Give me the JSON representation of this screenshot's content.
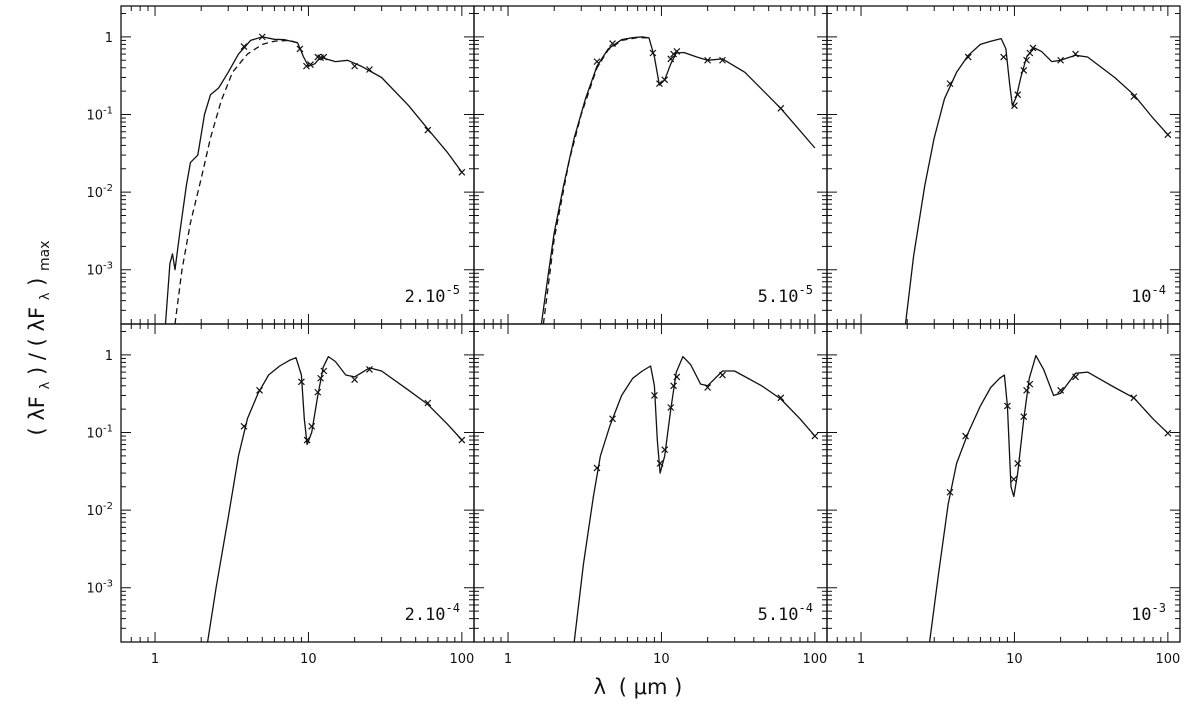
{
  "chart_data": [
    {
      "type": "line",
      "panel_label": {
        "mantissa": "2.10",
        "exp": "-5"
      },
      "xscale": "log",
      "yscale": "log",
      "xlim": [
        0.6,
        120
      ],
      "ylim": [
        0.0002,
        2.5
      ],
      "series": [
        {
          "style": "solid",
          "points": [
            [
              1.17,
              0.0002
            ],
            [
              1.25,
              0.0012
            ],
            [
              1.3,
              0.0016
            ],
            [
              1.35,
              0.001
            ],
            [
              1.45,
              0.003
            ],
            [
              1.6,
              0.012
            ],
            [
              1.7,
              0.024
            ],
            [
              1.9,
              0.03
            ],
            [
              2.1,
              0.1
            ],
            [
              2.3,
              0.18
            ],
            [
              2.6,
              0.22
            ],
            [
              3.0,
              0.35
            ],
            [
              3.5,
              0.6
            ],
            [
              4.2,
              0.9
            ],
            [
              5.0,
              1.0
            ],
            [
              6.0,
              0.93
            ],
            [
              7.0,
              0.92
            ],
            [
              8.5,
              0.84
            ],
            [
              9.3,
              0.55
            ],
            [
              10.0,
              0.42
            ],
            [
              11.0,
              0.45
            ],
            [
              12.0,
              0.55
            ],
            [
              13.0,
              0.52
            ],
            [
              15.0,
              0.48
            ],
            [
              18.0,
              0.5
            ],
            [
              22.0,
              0.42
            ],
            [
              30.0,
              0.3
            ],
            [
              45.0,
              0.13
            ],
            [
              60.0,
              0.065
            ],
            [
              80.0,
              0.033
            ],
            [
              100.0,
              0.018
            ]
          ]
        },
        {
          "style": "dashed",
          "points": [
            [
              1.35,
              0.0002
            ],
            [
              1.5,
              0.001
            ],
            [
              1.7,
              0.004
            ],
            [
              2.0,
              0.015
            ],
            [
              2.3,
              0.05
            ],
            [
              2.7,
              0.15
            ],
            [
              3.2,
              0.35
            ],
            [
              4.0,
              0.6
            ],
            [
              5.0,
              0.8
            ],
            [
              6.0,
              0.88
            ],
            [
              7.5,
              0.9
            ],
            [
              8.5,
              0.84
            ]
          ]
        }
      ],
      "markers": [
        [
          3.8,
          0.75
        ],
        [
          5.0,
          1.0
        ],
        [
          8.8,
          0.7
        ],
        [
          9.7,
          0.42
        ],
        [
          10.3,
          0.44
        ],
        [
          11.5,
          0.55
        ],
        [
          12.0,
          0.54
        ],
        [
          12.6,
          0.55
        ],
        [
          20.0,
          0.42
        ],
        [
          25.0,
          0.38
        ],
        [
          60.0,
          0.063
        ],
        [
          100.0,
          0.018
        ]
      ]
    },
    {
      "type": "line",
      "panel_label": {
        "mantissa": "5.10",
        "exp": "-5"
      },
      "xscale": "log",
      "yscale": "log",
      "xlim": [
        0.6,
        120
      ],
      "ylim": [
        0.0002,
        2.5
      ],
      "series": [
        {
          "style": "solid",
          "points": [
            [
              1.65,
              0.0002
            ],
            [
              1.8,
              0.0007
            ],
            [
              2.0,
              0.003
            ],
            [
              2.3,
              0.012
            ],
            [
              2.7,
              0.05
            ],
            [
              3.2,
              0.16
            ],
            [
              3.8,
              0.42
            ],
            [
              4.5,
              0.7
            ],
            [
              5.5,
              0.92
            ],
            [
              6.5,
              0.98
            ],
            [
              7.5,
              1.0
            ],
            [
              8.3,
              0.97
            ],
            [
              9.0,
              0.55
            ],
            [
              9.7,
              0.24
            ],
            [
              10.5,
              0.28
            ],
            [
              11.5,
              0.45
            ],
            [
              12.5,
              0.62
            ],
            [
              14.0,
              0.63
            ],
            [
              17.0,
              0.55
            ],
            [
              20.0,
              0.5
            ],
            [
              25.0,
              0.52
            ],
            [
              35.0,
              0.35
            ],
            [
              60.0,
              0.12
            ],
            [
              100.0,
              0.037
            ]
          ]
        },
        {
          "style": "dashed",
          "points": [
            [
              1.7,
              0.0002
            ],
            [
              2.0,
              0.0025
            ],
            [
              2.5,
              0.025
            ],
            [
              3.0,
              0.1
            ],
            [
              3.8,
              0.4
            ],
            [
              4.5,
              0.68
            ],
            [
              5.5,
              0.9
            ],
            [
              7.0,
              0.98
            ],
            [
              8.3,
              0.97
            ]
          ]
        }
      ],
      "markers": [
        [
          3.8,
          0.48
        ],
        [
          4.8,
          0.82
        ],
        [
          8.8,
          0.62
        ],
        [
          9.7,
          0.25
        ],
        [
          10.5,
          0.28
        ],
        [
          11.5,
          0.52
        ],
        [
          12.0,
          0.6
        ],
        [
          12.6,
          0.65
        ],
        [
          20.0,
          0.5
        ],
        [
          25.0,
          0.5
        ],
        [
          60.0,
          0.12
        ]
      ]
    },
    {
      "type": "line",
      "panel_label": {
        "mantissa": "10",
        "exp": "-4"
      },
      "xscale": "log",
      "yscale": "log",
      "xlim": [
        0.6,
        120
      ],
      "ylim": [
        0.0002,
        2.5
      ],
      "series": [
        {
          "style": "solid",
          "points": [
            [
              1.95,
              0.0002
            ],
            [
              2.2,
              0.0015
            ],
            [
              2.6,
              0.012
            ],
            [
              3.0,
              0.05
            ],
            [
              3.5,
              0.16
            ],
            [
              4.2,
              0.35
            ],
            [
              5.0,
              0.58
            ],
            [
              6.0,
              0.8
            ],
            [
              7.0,
              0.88
            ],
            [
              8.2,
              0.95
            ],
            [
              8.8,
              0.7
            ],
            [
              9.3,
              0.25
            ],
            [
              9.7,
              0.13
            ],
            [
              10.3,
              0.17
            ],
            [
              11.0,
              0.3
            ],
            [
              12.0,
              0.55
            ],
            [
              13.5,
              0.72
            ],
            [
              15.0,
              0.65
            ],
            [
              17.5,
              0.48
            ],
            [
              20.0,
              0.5
            ],
            [
              25.0,
              0.58
            ],
            [
              30.0,
              0.55
            ],
            [
              45.0,
              0.3
            ],
            [
              60.0,
              0.18
            ],
            [
              80.0,
              0.09
            ],
            [
              100.0,
              0.055
            ]
          ]
        }
      ],
      "markers": [
        [
          3.8,
          0.25
        ],
        [
          5.0,
          0.55
        ],
        [
          8.5,
          0.55
        ],
        [
          10.0,
          0.13
        ],
        [
          10.5,
          0.18
        ],
        [
          11.5,
          0.37
        ],
        [
          12.0,
          0.5
        ],
        [
          12.6,
          0.62
        ],
        [
          13.2,
          0.72
        ],
        [
          20.0,
          0.5
        ],
        [
          25.0,
          0.6
        ],
        [
          60.0,
          0.17
        ],
        [
          100.0,
          0.055
        ]
      ]
    },
    {
      "type": "line",
      "panel_label": {
        "mantissa": "2.10",
        "exp": "-4"
      },
      "xscale": "log",
      "yscale": "log",
      "xlim": [
        0.6,
        120
      ],
      "ylim": [
        0.0002,
        2.5
      ],
      "series": [
        {
          "style": "solid",
          "points": [
            [
              2.2,
              0.0002
            ],
            [
              2.5,
              0.001
            ],
            [
              3.0,
              0.008
            ],
            [
              3.5,
              0.05
            ],
            [
              4.0,
              0.15
            ],
            [
              4.7,
              0.32
            ],
            [
              5.5,
              0.55
            ],
            [
              6.5,
              0.72
            ],
            [
              7.5,
              0.85
            ],
            [
              8.3,
              0.92
            ],
            [
              9.0,
              0.55
            ],
            [
              9.4,
              0.15
            ],
            [
              9.8,
              0.07
            ],
            [
              10.5,
              0.1
            ],
            [
              11.5,
              0.3
            ],
            [
              12.5,
              0.7
            ],
            [
              13.5,
              0.95
            ],
            [
              15.0,
              0.82
            ],
            [
              17.5,
              0.55
            ],
            [
              20.0,
              0.52
            ],
            [
              25.0,
              0.68
            ],
            [
              30.0,
              0.62
            ],
            [
              45.0,
              0.35
            ],
            [
              60.0,
              0.23
            ],
            [
              80.0,
              0.13
            ],
            [
              100.0,
              0.08
            ]
          ]
        }
      ],
      "markers": [
        [
          3.8,
          0.12
        ],
        [
          4.8,
          0.35
        ],
        [
          9.0,
          0.45
        ],
        [
          9.8,
          0.08
        ],
        [
          10.5,
          0.12
        ],
        [
          11.5,
          0.33
        ],
        [
          12.0,
          0.5
        ],
        [
          12.6,
          0.62
        ],
        [
          20.0,
          0.48
        ],
        [
          25.0,
          0.65
        ],
        [
          60.0,
          0.24
        ],
        [
          100.0,
          0.08
        ]
      ]
    },
    {
      "type": "line",
      "panel_label": {
        "mantissa": "5.10",
        "exp": "-4"
      },
      "xscale": "log",
      "yscale": "log",
      "xlim": [
        0.6,
        120
      ],
      "ylim": [
        0.0002,
        2.5
      ],
      "series": [
        {
          "style": "solid",
          "points": [
            [
              2.7,
              0.0002
            ],
            [
              3.1,
              0.002
            ],
            [
              3.6,
              0.015
            ],
            [
              4.0,
              0.05
            ],
            [
              4.6,
              0.12
            ],
            [
              5.5,
              0.3
            ],
            [
              6.5,
              0.5
            ],
            [
              7.5,
              0.62
            ],
            [
              8.5,
              0.72
            ],
            [
              9.0,
              0.4
            ],
            [
              9.4,
              0.08
            ],
            [
              9.8,
              0.03
            ],
            [
              10.5,
              0.05
            ],
            [
              11.5,
              0.2
            ],
            [
              12.5,
              0.6
            ],
            [
              13.8,
              0.95
            ],
            [
              15.5,
              0.75
            ],
            [
              18.0,
              0.42
            ],
            [
              20.0,
              0.4
            ],
            [
              25.0,
              0.62
            ],
            [
              30.0,
              0.62
            ],
            [
              45.0,
              0.4
            ],
            [
              60.0,
              0.27
            ],
            [
              80.0,
              0.15
            ],
            [
              100.0,
              0.09
            ]
          ]
        }
      ],
      "markers": [
        [
          3.8,
          0.035
        ],
        [
          4.8,
          0.15
        ],
        [
          9.0,
          0.3
        ],
        [
          9.8,
          0.04
        ],
        [
          10.5,
          0.06
        ],
        [
          11.5,
          0.21
        ],
        [
          12.0,
          0.4
        ],
        [
          12.6,
          0.52
        ],
        [
          20.0,
          0.38
        ],
        [
          25.0,
          0.55
        ],
        [
          60.0,
          0.28
        ],
        [
          100.0,
          0.09
        ]
      ]
    },
    {
      "type": "line",
      "panel_label": {
        "mantissa": "10",
        "exp": "-3"
      },
      "xscale": "log",
      "yscale": "log",
      "xlim": [
        0.6,
        120
      ],
      "ylim": [
        0.0002,
        2.5
      ],
      "series": [
        {
          "style": "solid",
          "points": [
            [
              2.8,
              0.0002
            ],
            [
              3.2,
              0.0015
            ],
            [
              3.7,
              0.012
            ],
            [
              4.2,
              0.04
            ],
            [
              5.0,
              0.1
            ],
            [
              6.0,
              0.22
            ],
            [
              7.0,
              0.38
            ],
            [
              8.0,
              0.5
            ],
            [
              8.6,
              0.55
            ],
            [
              9.0,
              0.22
            ],
            [
              9.5,
              0.02
            ],
            [
              9.9,
              0.015
            ],
            [
              10.5,
              0.03
            ],
            [
              11.5,
              0.15
            ],
            [
              12.5,
              0.5
            ],
            [
              13.8,
              0.98
            ],
            [
              15.5,
              0.65
            ],
            [
              18.0,
              0.3
            ],
            [
              20.0,
              0.32
            ],
            [
              25.0,
              0.58
            ],
            [
              30.0,
              0.6
            ],
            [
              45.0,
              0.38
            ],
            [
              60.0,
              0.28
            ],
            [
              80.0,
              0.15
            ],
            [
              100.0,
              0.098
            ]
          ]
        }
      ],
      "markers": [
        [
          3.8,
          0.017
        ],
        [
          4.8,
          0.09
        ],
        [
          9.0,
          0.22
        ],
        [
          9.9,
          0.025
        ],
        [
          10.5,
          0.04
        ],
        [
          11.5,
          0.16
        ],
        [
          12.0,
          0.35
        ],
        [
          12.6,
          0.42
        ],
        [
          20.0,
          0.35
        ],
        [
          25.0,
          0.52
        ],
        [
          60.0,
          0.28
        ],
        [
          100.0,
          0.098
        ]
      ]
    }
  ],
  "axes": {
    "x_tick_labels": [
      "1",
      "10",
      "100"
    ],
    "y_tick_labels": [
      {
        "mantissa": "1",
        "exp": ""
      },
      {
        "mantissa": "10",
        "exp": "-1"
      },
      {
        "mantissa": "10",
        "exp": "-2"
      },
      {
        "mantissa": "10",
        "exp": "-3"
      }
    ],
    "xlabel_parts": {
      "lambda": "λ",
      "open": "(",
      "unit": "μm",
      "close": ")"
    },
    "ylabel_parts": {
      "lp1": "(",
      "num": "λF",
      "sub1": "λ",
      "rp1": ")",
      "slash": " / ",
      "lp2": "(",
      "den": "λF",
      "sub2": "λ",
      "rp2": ")",
      "max": "max"
    }
  }
}
